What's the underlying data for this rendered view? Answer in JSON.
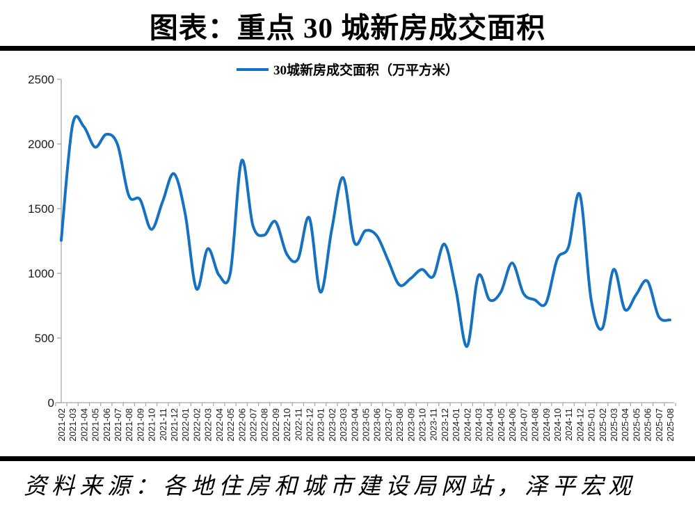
{
  "title": "图表：重点 30 城新房成交面积",
  "legend": "30城新房成交面积（万平方米）",
  "source": "资料来源：各地住房和城市建设局网站，泽平宏观",
  "colors": {
    "line": "#1571C1",
    "axis": "#a6a6a6",
    "label_text": "#1a1a1a"
  },
  "chart_data": {
    "type": "line",
    "title": "图表：重点 30 城新房成交面积",
    "legend_entries": [
      "30城新房成交面积（万平方米）"
    ],
    "legend_position": "top",
    "grid": false,
    "smooth": true,
    "ylim": [
      0,
      2500
    ],
    "y_ticks": [
      0,
      500,
      1000,
      1500,
      2000,
      2500
    ],
    "x": [
      "2021-02",
      "2021-03",
      "2021-04",
      "2021-05",
      "2021-06",
      "2021-07",
      "2021-08",
      "2021-09",
      "2021-10",
      "2021-11",
      "2021-12",
      "2022-01",
      "2022-02",
      "2022-03",
      "2022-04",
      "2022-05",
      "2022-06",
      "2022-07",
      "2022-08",
      "2022-09",
      "2022-10",
      "2022-11",
      "2022-12",
      "2023-01",
      "2023-02",
      "2023-03",
      "2023-04",
      "2023-05",
      "2023-06",
      "2023-07",
      "2023-08",
      "2023-09",
      "2023-10",
      "2023-11",
      "2023-12",
      "2024-01",
      "2024-02",
      "2024-03",
      "2024-04",
      "2024-05",
      "2024-06",
      "2024-07",
      "2024-08",
      "2024-09",
      "2024-10",
      "2024-11",
      "2024-12",
      "2025-01",
      "2025-02",
      "2025-03",
      "2025-04",
      "2025-05",
      "2025-06",
      "2025-07",
      "2025-08"
    ],
    "series": [
      {
        "name": "30城新房成交面积（万平方米）",
        "values": [
          1255,
          2145,
          2135,
          1975,
          2075,
          1995,
          1600,
          1570,
          1340,
          1555,
          1770,
          1460,
          880,
          1190,
          985,
          1005,
          1870,
          1370,
          1295,
          1400,
          1150,
          1110,
          1430,
          855,
          1340,
          1740,
          1240,
          1330,
          1290,
          1100,
          910,
          960,
          1030,
          975,
          1225,
          880,
          435,
          980,
          795,
          855,
          1080,
          845,
          795,
          770,
          1110,
          1205,
          1610,
          800,
          575,
          1030,
          720,
          835,
          940,
          665,
          640
        ]
      }
    ]
  }
}
